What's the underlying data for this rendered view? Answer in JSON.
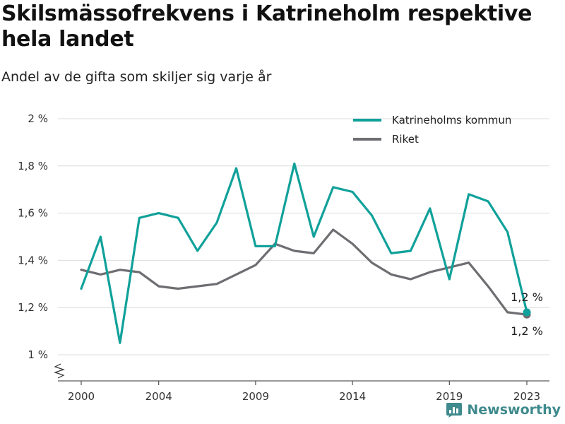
{
  "header": {
    "title": "Skilsmässofrekvens i Katrineholm respektive hela landet",
    "subtitle": "Andel av de gifta som skiljer sig varje år"
  },
  "brand": {
    "name": "Newsworthy",
    "icon": "newsworthy-logo-icon",
    "color": "#3f8a8c"
  },
  "chart_data": {
    "type": "line",
    "x": [
      2000,
      2001,
      2002,
      2003,
      2004,
      2005,
      2006,
      2007,
      2008,
      2009,
      2010,
      2011,
      2012,
      2013,
      2014,
      2015,
      2016,
      2017,
      2018,
      2019,
      2020,
      2021,
      2022,
      2023
    ],
    "series": [
      {
        "name": "Katrineholms kommun",
        "color": "#10a19a",
        "values": [
          1.28,
          1.5,
          1.05,
          1.58,
          1.6,
          1.58,
          1.44,
          1.56,
          1.79,
          1.46,
          1.46,
          1.81,
          1.5,
          1.71,
          1.69,
          1.59,
          1.43,
          1.44,
          1.62,
          1.32,
          1.68,
          1.65,
          1.52,
          1.18
        ],
        "end_label": "1,2 %"
      },
      {
        "name": "Riket",
        "color": "#6e6e72",
        "values": [
          1.36,
          1.34,
          1.36,
          1.35,
          1.29,
          1.28,
          1.29,
          1.3,
          1.34,
          1.38,
          1.47,
          1.44,
          1.43,
          1.53,
          1.47,
          1.39,
          1.34,
          1.32,
          1.35,
          1.37,
          1.39,
          1.29,
          1.18,
          1.17
        ],
        "end_label": "1,2 %"
      }
    ],
    "xticks": [
      2000,
      2004,
      2009,
      2014,
      2019,
      2023
    ],
    "xtick_labels": [
      "2000",
      "2004",
      "2009",
      "2014",
      "2019",
      "2023"
    ],
    "yticks": [
      1.0,
      1.2,
      1.4,
      1.6,
      1.8,
      2.0
    ],
    "ytick_labels": [
      "1 %",
      "1,2 %",
      "1,4 %",
      "1,6 %",
      "1,8 %",
      "2 %"
    ],
    "ylim": [
      1.0,
      2.0
    ],
    "xlim": [
      1999.5,
      2024
    ],
    "y_axis_break": true,
    "grid": true,
    "legend_position": "top-right"
  }
}
